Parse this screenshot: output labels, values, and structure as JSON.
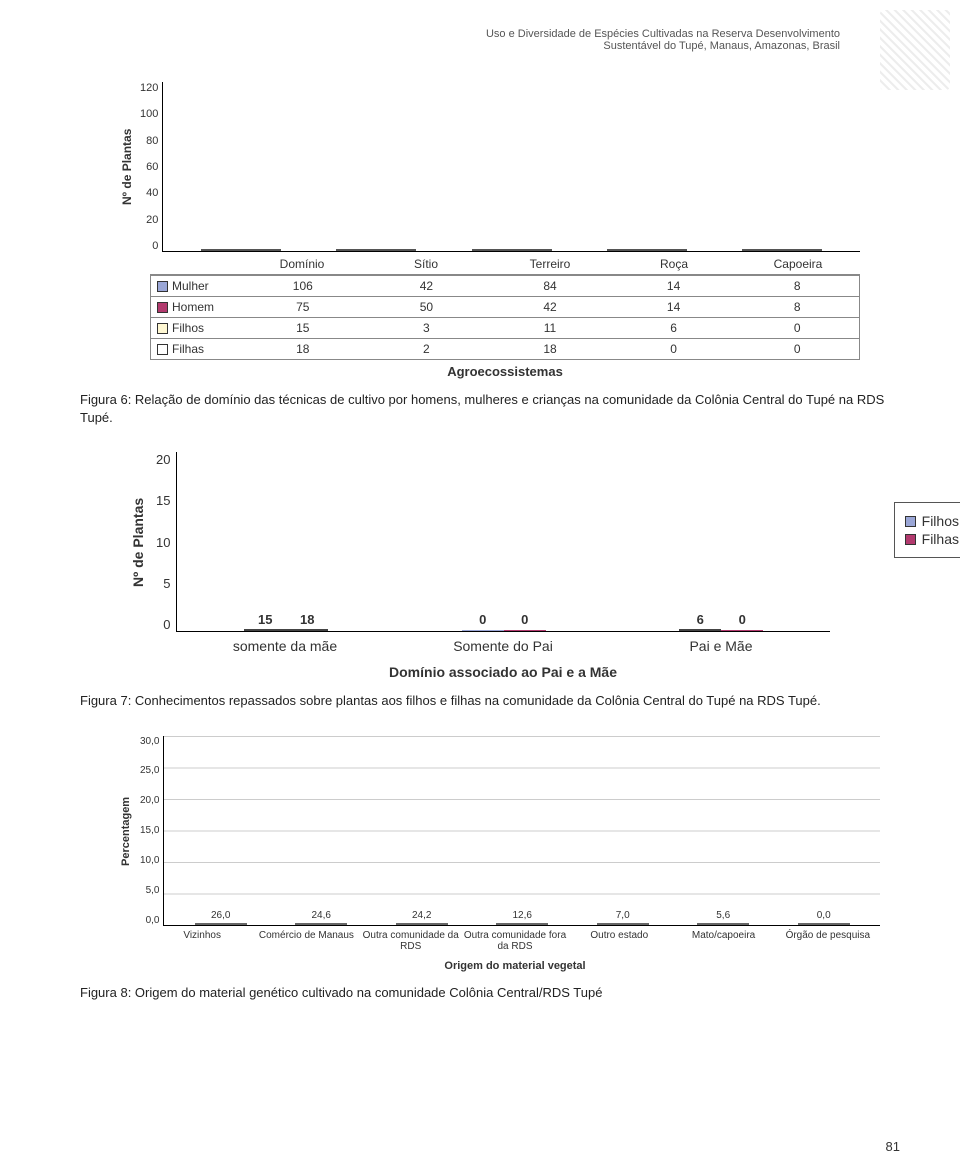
{
  "header": {
    "line1": "Uso e Diversidade de Espécies Cultivadas na Reserva Desenvolvimento",
    "line2": "Sustentável do Tupé, Manaus, Amazonas, Brasil"
  },
  "colors": {
    "mulher": "#9aa6d6",
    "homem": "#b23a6e",
    "filhos": "#fef7d2",
    "filhas": "#ffffff",
    "fig8_bar": "#d0d0d0",
    "grid": "#cccccc",
    "axis": "#000000"
  },
  "fig6": {
    "ylabel": "Nº de Plantas",
    "xlabel": "Agroecossistemas",
    "ymax": 120,
    "yticks": [
      "120",
      "100",
      "80",
      "60",
      "40",
      "20",
      "0"
    ],
    "categories": [
      "Domínio",
      "Sítio",
      "Terreiro",
      "Roça",
      "Capoeira"
    ],
    "series": [
      {
        "key": "Mulher",
        "color": "#9aa6d6",
        "values": [
          106,
          42,
          84,
          14,
          8
        ]
      },
      {
        "key": "Homem",
        "color": "#b23a6e",
        "values": [
          75,
          50,
          42,
          14,
          8
        ]
      },
      {
        "key": "Filhos",
        "color": "#fef7d2",
        "values": [
          15,
          3,
          11,
          6,
          0
        ]
      },
      {
        "key": "Filhas",
        "color": "#ffffff",
        "values": [
          18,
          2,
          18,
          0,
          0
        ]
      }
    ],
    "caption": "Figura 6: Relação de domínio das técnicas de cultivo por homens, mulheres e crianças na comunidade da Colônia Central do Tupé na RDS Tupé."
  },
  "fig7": {
    "ylabel": "Nº de Plantas",
    "xlabel": "Domínio associado ao Pai e a Mãe",
    "ymax": 20,
    "yticks": [
      "20",
      "15",
      "10",
      "5",
      "0"
    ],
    "categories": [
      "somente da mãe",
      "Somente do Pai",
      "Pai e Mãe"
    ],
    "series": [
      {
        "key": "Filhos",
        "color": "#9aa6d6",
        "values": [
          15,
          0,
          6
        ]
      },
      {
        "key": "Filhas",
        "color": "#b23a6e",
        "values": [
          18,
          0,
          0
        ]
      }
    ],
    "caption": "Figura 7: Conhecimentos repassados sobre plantas aos filhos e filhas na comunidade da Colônia Central do Tupé na RDS Tupé."
  },
  "fig8": {
    "ylabel": "Percentagem",
    "xlabel": "Origem do material vegetal",
    "ymax": 30,
    "yticks": [
      "30,0",
      "25,0",
      "20,0",
      "15,0",
      "10,0",
      "5,0",
      "0,0"
    ],
    "bar_color": "#d0d0d0",
    "data": [
      {
        "label": "Vizinhos",
        "value": 26.0,
        "disp": "26,0"
      },
      {
        "label": "Comércio de Manaus",
        "value": 24.6,
        "disp": "24,6"
      },
      {
        "label": "Outra comunidade da RDS",
        "value": 24.2,
        "disp": "24,2"
      },
      {
        "label": "Outra comunidade fora da RDS",
        "value": 12.6,
        "disp": "12,6"
      },
      {
        "label": "Outro estado",
        "value": 7.0,
        "disp": "7,0"
      },
      {
        "label": "Mato/capoeira",
        "value": 5.6,
        "disp": "5,6"
      },
      {
        "label": "Órgão de pesquisa",
        "value": 0.0,
        "disp": "0,0"
      }
    ],
    "caption": "Figura 8: Origem do material genético cultivado na comunidade Colônia Central/RDS Tupé"
  },
  "page_number": "81"
}
